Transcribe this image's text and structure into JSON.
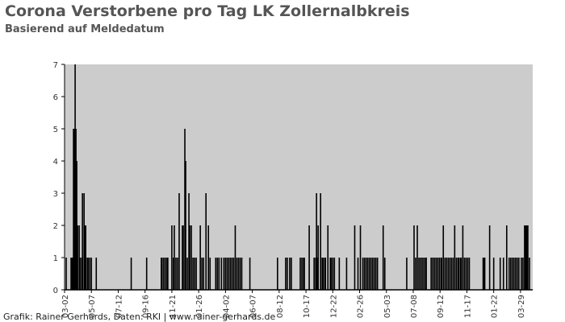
{
  "chart_data": {
    "type": "bar",
    "title": "Corona Verstorbene pro Tag LK Zollernalbkreis",
    "subtitle": "Basierend auf Meldedatum",
    "footer": "Grafik: Rainer Gerhards, Daten: RKI | www.rainer-gerhards.de",
    "color": "#000000",
    "background": "#cccccc",
    "x": [
      4,
      16,
      18,
      20,
      22,
      24,
      26,
      28,
      30,
      32,
      36,
      38,
      42,
      44,
      48,
      50,
      52,
      56,
      58,
      62,
      66,
      78,
      164,
      202,
      238,
      240,
      244,
      248,
      252,
      254,
      264,
      268,
      270,
      274,
      278,
      282,
      290,
      292,
      296,
      298,
      302,
      306,
      308,
      312,
      316,
      320,
      324,
      334,
      338,
      342,
      348,
      354,
      358,
      372,
      376,
      380,
      386,
      392,
      396,
      400,
      404,
      408,
      412,
      416,
      420,
      424,
      428,
      432,
      436,
      456,
      524,
      544,
      548,
      554,
      558,
      580,
      584,
      588,
      590,
      602,
      614,
      618,
      620,
      622,
      624,
      630,
      634,
      636,
      640,
      642,
      648,
      654,
      656,
      660,
      664,
      676,
      694,
      714,
      722,
      728,
      734,
      738,
      742,
      746,
      750,
      754,
      758,
      762,
      766,
      770,
      784,
      788,
      842,
      860,
      864,
      868,
      872,
      876,
      880,
      884,
      888,
      890,
      902,
      906,
      910,
      914,
      918,
      922,
      926,
      928,
      932,
      936,
      940,
      944,
      948,
      952,
      956,
      960,
      964,
      968,
      970,
      974,
      976,
      980,
      984,
      988,
      992,
      996,
      1030,
      1032,
      1034,
      1046,
      1056,
      1072,
      1080,
      1088,
      1094,
      1098,
      1102,
      1106,
      1110,
      1114,
      1118,
      1124,
      1128,
      1132,
      1134,
      1136,
      1138,
      1140,
      1144
    ],
    "values": [
      1,
      1,
      1,
      1,
      5,
      5,
      7,
      5,
      4,
      2,
      2,
      1,
      1,
      3,
      3,
      2,
      2,
      1,
      1,
      1,
      1,
      1,
      1,
      1,
      1,
      1,
      1,
      1,
      1,
      1,
      2,
      1,
      2,
      1,
      1,
      3,
      2,
      2,
      5,
      4,
      1,
      3,
      2,
      2,
      1,
      1,
      1,
      2,
      1,
      1,
      3,
      2,
      1,
      1,
      1,
      1,
      1,
      1,
      1,
      1,
      1,
      1,
      1,
      1,
      2,
      1,
      1,
      1,
      1,
      1,
      1,
      1,
      1,
      1,
      1,
      1,
      1,
      1,
      1,
      2,
      1,
      1,
      3,
      1,
      2,
      3,
      1,
      1,
      1,
      1,
      2,
      1,
      1,
      1,
      1,
      1,
      1,
      2,
      1,
      2,
      1,
      1,
      1,
      1,
      1,
      1,
      1,
      1,
      1,
      1,
      2,
      1,
      1,
      2,
      1,
      2,
      1,
      1,
      1,
      1,
      1,
      1,
      1,
      1,
      1,
      1,
      1,
      1,
      1,
      1,
      2,
      1,
      1,
      1,
      1,
      1,
      1,
      2,
      1,
      1,
      1,
      1,
      1,
      2,
      1,
      1,
      1,
      1,
      1,
      1,
      1,
      2,
      1,
      1,
      1,
      2,
      1,
      1,
      1,
      1,
      1,
      1,
      1,
      1,
      1,
      2,
      2,
      2,
      2,
      2,
      1
    ],
    "xlim": [
      0,
      1152
    ],
    "xticks": [
      {
        "value": 0,
        "label": "03-02"
      },
      {
        "value": 66,
        "label": "05-07"
      },
      {
        "value": 132,
        "label": "07-12"
      },
      {
        "value": 198,
        "label": "09-16"
      },
      {
        "value": 264,
        "label": "11-21"
      },
      {
        "value": 330,
        "label": "01-26"
      },
      {
        "value": 396,
        "label": "04-02"
      },
      {
        "value": 462,
        "label": "06-07"
      },
      {
        "value": 528,
        "label": "08-12"
      },
      {
        "value": 594,
        "label": "10-17"
      },
      {
        "value": 660,
        "label": "12-22"
      },
      {
        "value": 726,
        "label": "02-26"
      },
      {
        "value": 792,
        "label": "05-03"
      },
      {
        "value": 858,
        "label": "07-08"
      },
      {
        "value": 924,
        "label": "09-12"
      },
      {
        "value": 990,
        "label": "11-17"
      },
      {
        "value": 1056,
        "label": "01-22"
      },
      {
        "value": 1122,
        "label": "03-29"
      }
    ],
    "ylim": [
      0,
      7
    ],
    "yticks": [
      0,
      1,
      2,
      3,
      4,
      5,
      6,
      7
    ]
  }
}
